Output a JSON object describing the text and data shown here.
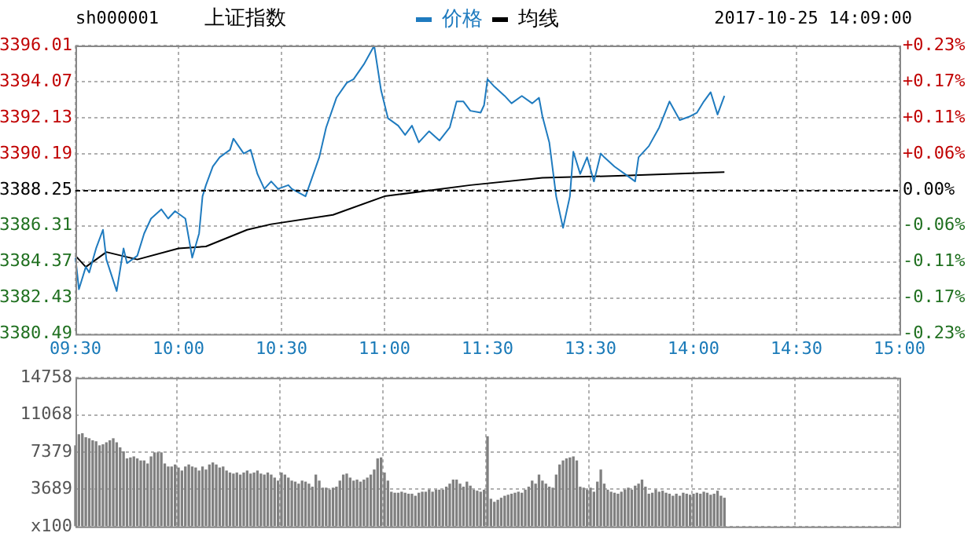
{
  "chart_data": [
    {
      "type": "line",
      "title": "上证指数",
      "annotations": [
        "sh000001",
        "2017-10-25 14:09:00"
      ],
      "legend": "top",
      "grid": true,
      "categories": [
        "09:30",
        null,
        null,
        null,
        null,
        null,
        null,
        null,
        null,
        null,
        null,
        null,
        null,
        null,
        null,
        null,
        null,
        null,
        null,
        null,
        null,
        null,
        null,
        null,
        null,
        null,
        null,
        null,
        null,
        null,
        "10:00",
        null,
        null,
        null,
        null,
        null,
        null,
        null,
        null,
        null,
        null,
        null,
        null,
        null,
        null,
        null,
        null,
        null,
        null,
        null,
        null,
        null,
        null,
        null,
        null,
        null,
        null,
        null,
        null,
        null,
        "10:30",
        null,
        null,
        null,
        null,
        null,
        null,
        null,
        null,
        null,
        null,
        null,
        null,
        null,
        null,
        null,
        null,
        null,
        null,
        null,
        null,
        null,
        null,
        null,
        null,
        null,
        null,
        null,
        null,
        null,
        "11:00",
        null,
        null,
        null,
        null,
        null,
        null,
        null,
        null,
        null,
        null,
        null,
        null,
        null,
        null,
        null,
        null,
        null,
        null,
        null,
        null,
        null,
        null,
        null,
        null,
        null,
        null,
        null,
        null,
        null,
        "11:30",
        null,
        null,
        null,
        null,
        null,
        null,
        null,
        null,
        null,
        null,
        null,
        null,
        null,
        null,
        null,
        null,
        null,
        null,
        null,
        null,
        null,
        null,
        null,
        null,
        null,
        null,
        null,
        null,
        null,
        "13:30",
        null,
        null,
        null,
        null,
        null,
        null,
        null,
        null,
        null,
        null,
        null,
        null,
        null,
        null,
        null,
        null,
        null,
        null,
        null,
        null,
        null,
        null,
        null,
        null,
        null,
        null,
        null,
        null,
        null,
        "14:00",
        null,
        null,
        null,
        null,
        null,
        null,
        null,
        null,
        null,
        null,
        null,
        null,
        null,
        null,
        null,
        null,
        null,
        null,
        null,
        null,
        null,
        null,
        null,
        null,
        null,
        null,
        null,
        null,
        null,
        "14:30",
        null,
        null,
        null,
        null,
        null,
        null,
        null,
        null,
        null,
        null,
        null,
        null,
        null,
        null,
        null,
        null,
        null,
        null,
        null,
        null,
        null,
        null,
        null,
        null,
        null,
        null,
        null,
        null,
        null,
        "15:00"
      ],
      "ylim": [
        3380.49,
        3396.01
      ],
      "yticks": [
        3380.49,
        3382.43,
        3384.37,
        3386.31,
        3388.25,
        3390.19,
        3392.13,
        3394.07,
        3396.01
      ],
      "y2lim": [
        -0.23,
        0.23
      ],
      "y2ticks": [
        {
          "value": -0.23,
          "label": "-0.23%"
        },
        {
          "value": -0.1725,
          "label": "-0.17%"
        },
        {
          "value": -0.115,
          "label": "-0.11%"
        },
        {
          "value": -0.0575,
          "label": "-0.06%"
        },
        {
          "value": 0,
          "label": "0.00%"
        },
        {
          "value": 0.0575,
          "label": "+0.06%"
        },
        {
          "value": 0.115,
          "label": "+0.11%"
        },
        {
          "value": 0.1725,
          "label": "+0.17%"
        },
        {
          "value": 0.23,
          "label": "+0.23%"
        }
      ],
      "ref_lines": [
        {
          "axis": "y",
          "value": 3388.25,
          "color": "#000000",
          "line_style": "dashed"
        }
      ],
      "series": [
        {
          "name": "价格",
          "color": "#1f7bbf",
          "values": [
            3384.6,
            3382.9,
            null,
            3384.1,
            3383.8,
            null,
            3385.1,
            null,
            3386.1,
            3384.5,
            null,
            null,
            3382.8,
            null,
            3385.1,
            3384.3,
            null,
            null,
            3384.7,
            null,
            3385.9,
            null,
            3386.7,
            null,
            null,
            3387.2,
            null,
            3386.7,
            null,
            3387.1,
            null,
            null,
            3386.7,
            null,
            3384.6,
            null,
            3385.9,
            3387.9,
            3388.5,
            null,
            3389.5,
            null,
            3390,
            null,
            null,
            3390.4,
            3391,
            null,
            null,
            3390.2,
            null,
            3390.4,
            null,
            3389.1,
            null,
            3388.3,
            null,
            3388.7,
            null,
            3388.3,
            null,
            null,
            3388.5,
            3388.3,
            null,
            null,
            null,
            3387.9,
            null,
            null,
            null,
            3390,
            null,
            3391.6,
            null,
            null,
            3393.2,
            null,
            null,
            3394,
            null,
            3394.2,
            null,
            null,
            3395,
            null,
            null,
            3396,
            null,
            3393.6,
            null,
            3392.1,
            null,
            null,
            3391.7,
            null,
            3391.2,
            null,
            3391.7,
            null,
            3390.8,
            null,
            null,
            3391.4,
            null,
            null,
            3390.9,
            null,
            null,
            3391.6,
            null,
            3393,
            null,
            3393,
            null,
            3392.5,
            null,
            null,
            3392.4,
            3392.8,
            3394.2,
            null,
            3393.8,
            null,
            null,
            3393.3,
            null,
            3392.9,
            null,
            null,
            3393.3,
            null,
            null,
            3392.9,
            null,
            3393.2,
            3392.2,
            null,
            3390.8,
            null,
            3387.9,
            null,
            3386.2,
            null,
            3387.9,
            3390.3,
            null,
            3389.1,
            null,
            3390,
            null,
            3388.7,
            null,
            3390.2,
            3390,
            null,
            null,
            3389.5,
            null,
            null,
            3389.1,
            null,
            null,
            3388.7,
            3390,
            null,
            null,
            3390.6,
            null,
            null,
            3391.6,
            null,
            null,
            3393,
            null,
            null,
            3392,
            null,
            null,
            3392.2,
            null,
            3392.4,
            null,
            3393,
            null,
            3393.5,
            null,
            3392.3,
            null,
            3393.3,
            null,
            null,
            null,
            null,
            null,
            null,
            null,
            null,
            null,
            null,
            null,
            null,
            null,
            null,
            null,
            null,
            null,
            null,
            null,
            null,
            null,
            null,
            null,
            null,
            null,
            null,
            null,
            null,
            null,
            null,
            null,
            null,
            null,
            null,
            null,
            null,
            null,
            null,
            null,
            null,
            null,
            null,
            null,
            null,
            null,
            null,
            null,
            null,
            null,
            null,
            null
          ]
        },
        {
          "name": "均线",
          "color": "#000000",
          "values": [
            3384.7,
            null,
            null,
            3384.1,
            null,
            null,
            null,
            null,
            null,
            3384.9,
            null,
            null,
            null,
            null,
            null,
            null,
            null,
            null,
            3384.5,
            null,
            null,
            null,
            null,
            null,
            null,
            null,
            null,
            null,
            null,
            null,
            3385.1,
            null,
            null,
            null,
            null,
            null,
            null,
            null,
            3385.2,
            null,
            null,
            null,
            null,
            null,
            null,
            null,
            null,
            null,
            null,
            null,
            3386.1,
            null,
            null,
            null,
            null,
            null,
            null,
            3386.4,
            null,
            null,
            null,
            null,
            null,
            null,
            null,
            null,
            null,
            null,
            null,
            null,
            null,
            null,
            null,
            null,
            null,
            3386.9,
            null,
            null,
            null,
            null,
            null,
            null,
            null,
            null,
            null,
            null,
            null,
            null,
            null,
            null,
            3387.9,
            null,
            null,
            null,
            null,
            null,
            null,
            null,
            null,
            null,
            null,
            null,
            null,
            null,
            null,
            null,
            null,
            null,
            null,
            null,
            null,
            null,
            null,
            null,
            null,
            3388.5,
            null,
            null,
            null,
            null,
            null,
            null,
            null,
            null,
            null,
            null,
            null,
            null,
            null,
            null,
            null,
            null,
            null,
            null,
            null,
            null,
            3388.9,
            null,
            null,
            null,
            null,
            null,
            null,
            null,
            null,
            null,
            null,
            null,
            null,
            null,
            null,
            null,
            null,
            null,
            null,
            null,
            null,
            null,
            3389,
            null,
            null,
            null,
            null,
            null,
            null,
            null,
            null,
            null,
            null,
            null,
            null,
            null,
            null,
            null,
            null,
            null,
            null,
            null,
            null,
            null,
            null,
            null,
            null,
            null,
            null,
            null,
            null,
            null,
            null,
            3389.2,
            null,
            null,
            null,
            null,
            null,
            null,
            null,
            null,
            null,
            null,
            null,
            null,
            null,
            null,
            null,
            null,
            null,
            null,
            null,
            null,
            null,
            null,
            null,
            null,
            null,
            null,
            null,
            null,
            null,
            null,
            null,
            null,
            null,
            null,
            null,
            null,
            null,
            null,
            null,
            null,
            null,
            null,
            null,
            null,
            null,
            null,
            null,
            null,
            null,
            null,
            null
          ]
        }
      ]
    },
    {
      "type": "bar",
      "color": "#808080",
      "grid": true,
      "tick_labels": "y",
      "categories": [
        null,
        null,
        null,
        null,
        null,
        null,
        null,
        null,
        null,
        null,
        null,
        null,
        null,
        null,
        null,
        null,
        null,
        null,
        null,
        null,
        null,
        null,
        null,
        null,
        null,
        null,
        null,
        null,
        null,
        null,
        null,
        null,
        null,
        null,
        null,
        null,
        null,
        null,
        null,
        null,
        null,
        null,
        null,
        null,
        null,
        null,
        null,
        null,
        null,
        null,
        null,
        null,
        null,
        null,
        null,
        null,
        null,
        null,
        null,
        null,
        null,
        null,
        null,
        null,
        null,
        null,
        null,
        null,
        null,
        null,
        null,
        null,
        null,
        null,
        null,
        null,
        null,
        null,
        null,
        null,
        null,
        null,
        null,
        null,
        null,
        null,
        null,
        null,
        null,
        null,
        null,
        null,
        null,
        null,
        null,
        null,
        null,
        null,
        null,
        null,
        null,
        null,
        null,
        null,
        null,
        null,
        null,
        null,
        null,
        null,
        null,
        null,
        null,
        null,
        null,
        null,
        null,
        null,
        null,
        null,
        null,
        null,
        null,
        null,
        null,
        null,
        null,
        null,
        null,
        null,
        null,
        null,
        null,
        null,
        null,
        null,
        null,
        null,
        null,
        null,
        null,
        null,
        null,
        null,
        null,
        null,
        null,
        null,
        null,
        null,
        null,
        null,
        null,
        null,
        null,
        null,
        null,
        null,
        null,
        null,
        null,
        null,
        null,
        null,
        null,
        null,
        null,
        null,
        null,
        null,
        null,
        null,
        null,
        null,
        null,
        null,
        null,
        null,
        null,
        null,
        null,
        null,
        null,
        null,
        null,
        null,
        null,
        null,
        null,
        null,
        null,
        null,
        null,
        null,
        null,
        null,
        null,
        null,
        null,
        null,
        null,
        null,
        null,
        null,
        null,
        null,
        null,
        null,
        null,
        null,
        null,
        null,
        null,
        null,
        null,
        null,
        null,
        null,
        null,
        null,
        null,
        null,
        null,
        null,
        null,
        null,
        null,
        null,
        null,
        null,
        null,
        null,
        null,
        null,
        null,
        null,
        null,
        null,
        null,
        null,
        null
      ],
      "ylim": [
        0,
        14758
      ],
      "yticks": [
        {
          "value": 0,
          "label": "x100"
        },
        3689,
        7379,
        11068,
        14758
      ],
      "values": [
        8000,
        9100,
        9200,
        8800,
        8700,
        8500,
        8400,
        8000,
        8100,
        8300,
        8500,
        8700,
        8300,
        7800,
        7400,
        6700,
        6800,
        6900,
        6700,
        6500,
        6500,
        6200,
        6900,
        7300,
        7300,
        7300,
        6200,
        5900,
        5900,
        6100,
        5800,
        5500,
        5900,
        6100,
        5900,
        5800,
        5500,
        5900,
        5600,
        6100,
        6300,
        6100,
        5800,
        5900,
        5500,
        5300,
        5200,
        5300,
        5100,
        5300,
        5500,
        5200,
        5300,
        5500,
        5200,
        5100,
        5300,
        5100,
        4800,
        4500,
        5300,
        5100,
        4800,
        4500,
        4400,
        4200,
        4500,
        4400,
        4200,
        3900,
        5100,
        4500,
        3800,
        3800,
        3600,
        3800,
        3900,
        4500,
        5100,
        5200,
        4800,
        4500,
        4600,
        4400,
        4600,
        4800,
        5100,
        5600,
        6700,
        6800,
        5300,
        4500,
        3400,
        3300,
        3300,
        3400,
        3300,
        3200,
        3200,
        3000,
        3300,
        3400,
        3400,
        3600,
        3400,
        3600,
        3600,
        3600,
        3900,
        4200,
        4600,
        4600,
        4200,
        3900,
        4400,
        4000,
        3600,
        3500,
        3400,
        3600,
        8900,
        2700,
        2400,
        2600,
        2800,
        3000,
        3100,
        3200,
        3300,
        3400,
        3300,
        3600,
        3900,
        4500,
        4200,
        5100,
        4500,
        4200,
        3900,
        3800,
        5100,
        6100,
        6500,
        6700,
        6800,
        6900,
        6500,
        3900,
        3800,
        3600,
        3800,
        3400,
        4400,
        5600,
        4200,
        3600,
        3400,
        3300,
        3200,
        3400,
        3600,
        3800,
        3600,
        4000,
        4200,
        4600,
        3900,
        3200,
        3300,
        3600,
        3400,
        3500,
        3300,
        3200,
        3000,
        3200,
        3000,
        3300,
        3200,
        3100,
        3200,
        3300,
        3200,
        3400,
        3300,
        3100,
        3200,
        3500,
        3000,
        2800,
        null,
        null,
        null,
        null,
        null,
        null,
        null,
        null,
        null,
        null,
        null,
        null,
        null,
        null,
        null,
        null,
        null,
        null,
        null,
        null,
        null,
        null,
        null,
        null,
        null,
        null,
        null,
        null,
        null,
        null,
        null,
        null,
        null,
        null,
        null,
        null,
        null,
        null,
        null,
        null,
        null,
        null,
        null,
        null,
        null,
        null,
        null,
        null,
        null,
        null,
        null
      ]
    }
  ]
}
